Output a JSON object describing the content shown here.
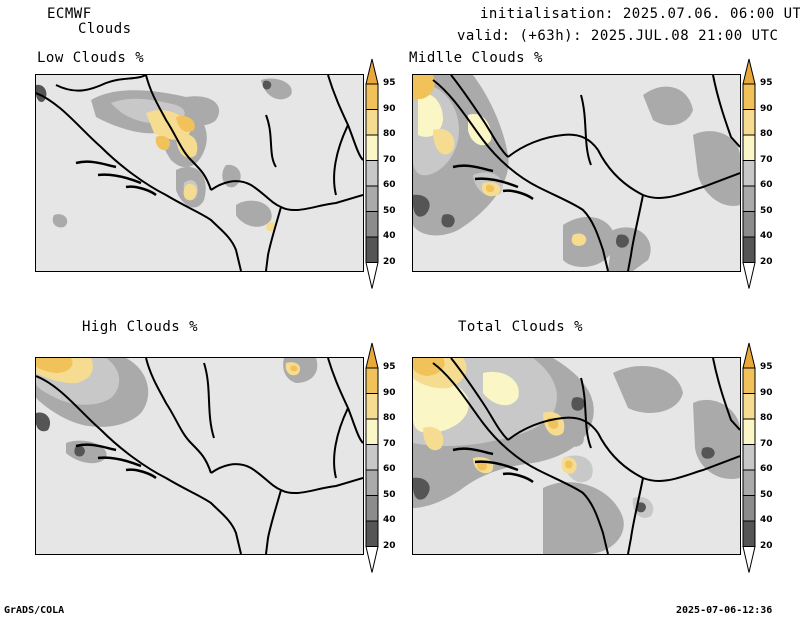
{
  "header": {
    "model": "ECMWF",
    "product": "Clouds",
    "init": "initialisation: 2025.07.06. 06:00 UTC",
    "valid": "valid: (+63h): 2025.JUL.08 21:00 UTC"
  },
  "panels": [
    {
      "title": "Low Clouds %"
    },
    {
      "title": "Midlle Clouds %"
    },
    {
      "title": "High Clouds %"
    },
    {
      "title": "Total Clouds %"
    }
  ],
  "colorbar": {
    "levels": [
      "20",
      "40",
      "50",
      "60",
      "70",
      "80",
      "90",
      "95"
    ],
    "colors": {
      "lt20": "#ffffff",
      "20-40": "#555555",
      "40-50": "#8c8c8c",
      "50-60": "#aaaaaa",
      "60-70": "#c8c8c8",
      "70-80": "#fbf6c5",
      "80-90": "#f6dc91",
      "90-95": "#f2c25a",
      "gt95": "#e9a83a"
    }
  },
  "footer": {
    "left": "GrADS/COLA",
    "right": "2025-07-06-12:36"
  }
}
